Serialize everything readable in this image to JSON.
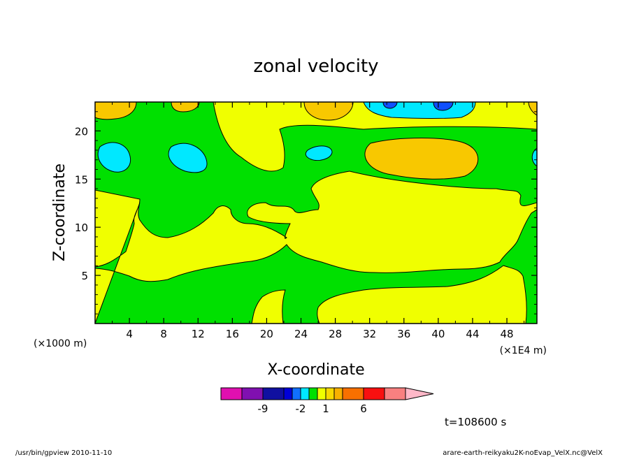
{
  "chart_data": {
    "type": "heatmap",
    "title": "zonal velocity",
    "xlabel": "X-coordinate",
    "ylabel": "Z-coordinate",
    "x_units_left": "(×1000 m)",
    "x_units_right": "(×1E4 m)",
    "xlim": [
      0,
      51.5
    ],
    "ylim": [
      0,
      23
    ],
    "x_ticks": [
      "4",
      "8",
      "12",
      "16",
      "20",
      "24",
      "28",
      "32",
      "36",
      "40",
      "44",
      "48"
    ],
    "y_ticks": [
      "5",
      "10",
      "15",
      "20"
    ],
    "time_label": "t=108600 s",
    "colorbar": {
      "tick_labels": [
        "-9",
        "-2",
        "1",
        "6"
      ],
      "colors": [
        "#e010b0",
        "#8010b0",
        "#1010a0",
        "#0000d8",
        "#1070ff",
        "#00e8ff",
        "#00e000",
        "#f0ff00",
        "#f8d800",
        "#f8b000",
        "#f87000",
        "#f81010",
        "#f88080",
        "#ffb8c8"
      ]
    },
    "palette": {
      "yellow": "#f0ff00",
      "green": "#00e000",
      "cyan": "#00e8ff",
      "orange": "#f8c800",
      "blue": "#1050ff"
    }
  },
  "footer": {
    "left": "/usr/bin/gpview   2010-11-10",
    "right": "arare-earth-reikyaku2K-noEvap_VelX.nc@VelX"
  }
}
